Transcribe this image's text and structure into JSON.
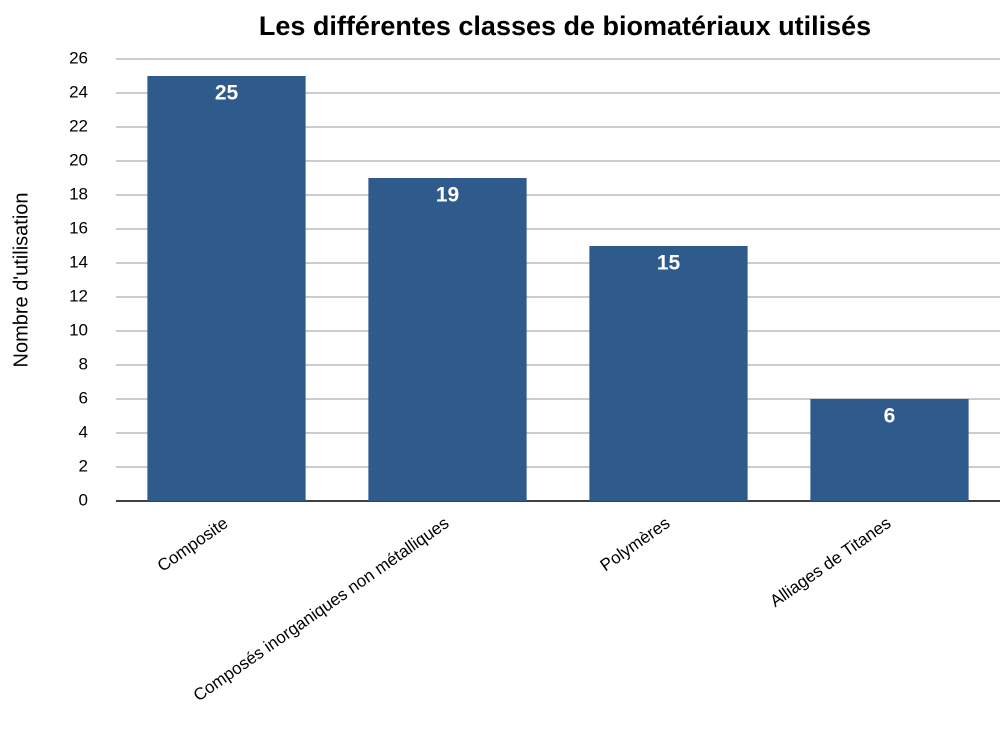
{
  "chart_data": {
    "type": "bar",
    "title": "Les différentes classes de biomatériaux utilisés",
    "y_label": "Nombre d'utilisation",
    "categories": [
      "Composite",
      "Composés inorganiques non métalliques",
      "Polymères",
      "Alliages de Titanes"
    ],
    "values": [
      25,
      19,
      15,
      6
    ],
    "color": "#2e5a8c",
    "ylim": [
      0,
      26
    ],
    "yticks": [
      0,
      2,
      4,
      6,
      8,
      10,
      12,
      14,
      16,
      18,
      20,
      22,
      24,
      26
    ],
    "grid": true
  }
}
